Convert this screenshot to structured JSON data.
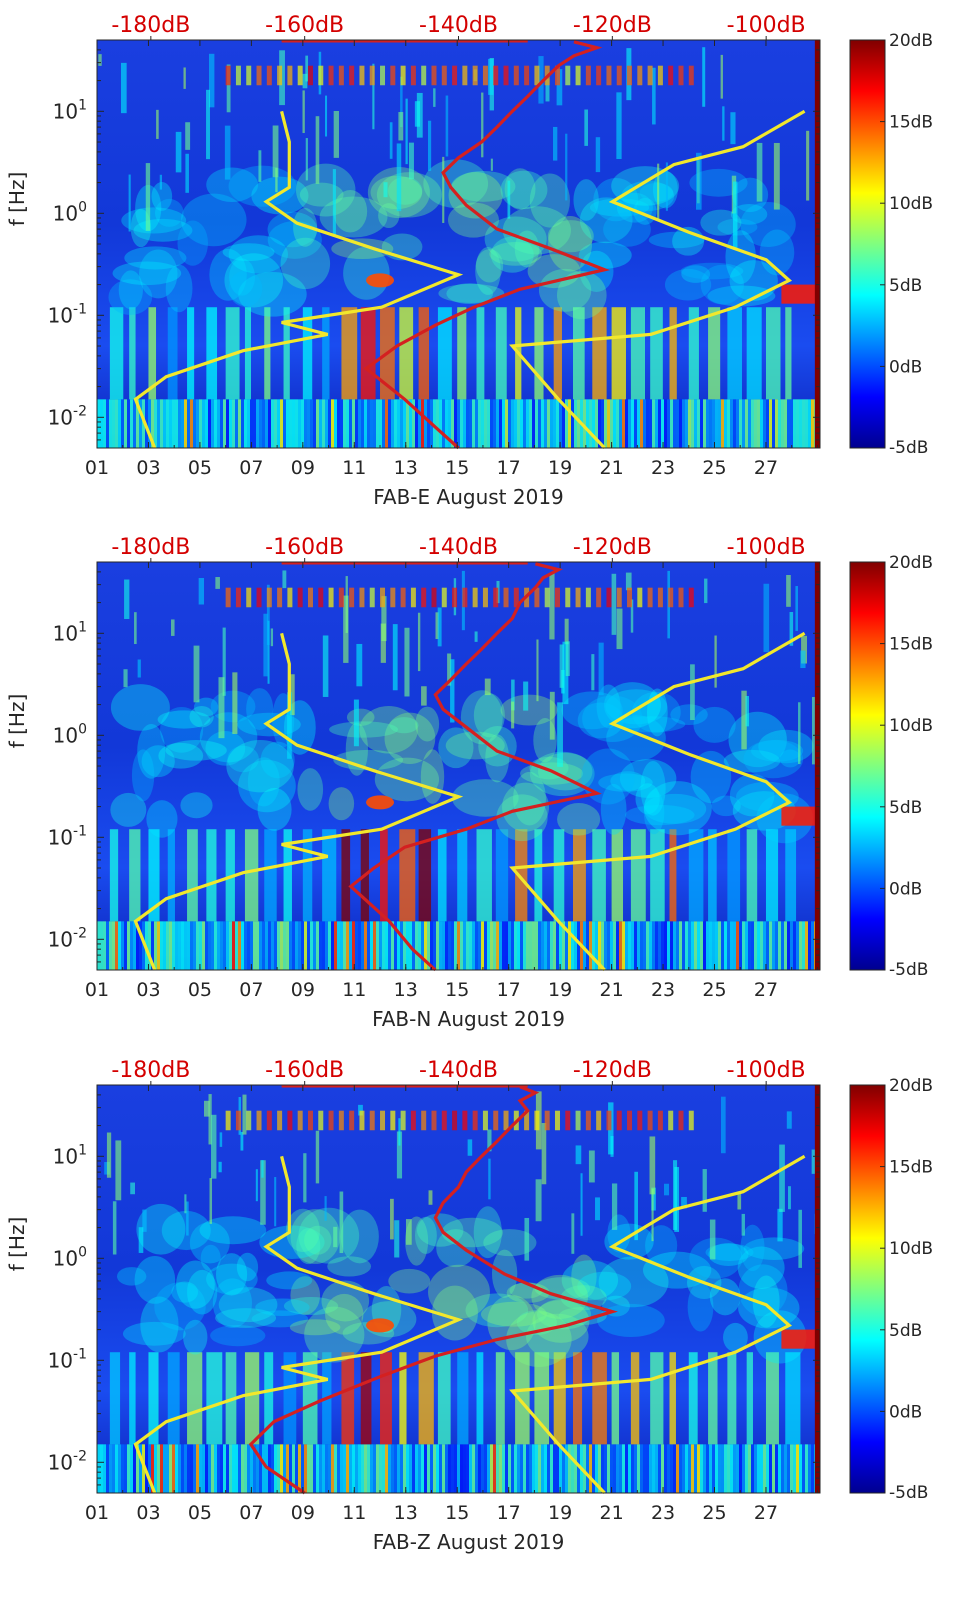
{
  "chart_data": {
    "type": "heatmap",
    "description_of_overlays": "spectrogram with noise-model curves (yellow) and station PSD curve (red)",
    "panels": [
      {
        "name": "FAB-E",
        "xlabel": "FAB-E August 2019",
        "ylabel": "f [Hz]",
        "x_ticks": [
          "01",
          "03",
          "05",
          "07",
          "09",
          "11",
          "13",
          "15",
          "17",
          "19",
          "21",
          "23",
          "25",
          "27"
        ],
        "y_ticks": [
          "10^-2",
          "10^-1",
          "10^0",
          "10^1"
        ],
        "y_range_hz": [
          0.005,
          50
        ],
        "top_axis_labels": [
          "-180dB",
          "-160dB",
          "-140dB",
          "-120dB",
          "-100dB"
        ],
        "top_axis_values_db": [
          -180,
          -160,
          -140,
          -120,
          -100
        ],
        "colorbar_labels": [
          "20dB",
          "15dB",
          "10dB",
          "5dB",
          "0dB",
          "-5dB"
        ],
        "colorbar_range_db": [
          -5,
          20
        ],
        "red_curve": {
          "name": "station PSD",
          "color": "#d42020",
          "points": [
            [
              -140,
              0.005
            ],
            [
              -143,
              0.008
            ],
            [
              -147,
              0.015
            ],
            [
              -152,
              0.03
            ],
            [
              -148,
              0.05
            ],
            [
              -143,
              0.08
            ],
            [
              -138,
              0.12
            ],
            [
              -132,
              0.18
            ],
            [
              -121,
              0.28
            ],
            [
              -128,
              0.45
            ],
            [
              -135,
              0.7
            ],
            [
              -139,
              1.2
            ],
            [
              -141,
              1.8
            ],
            [
              -142,
              2.5
            ],
            [
              -140,
              3.5
            ],
            [
              -137,
              5
            ],
            [
              -135,
              7
            ],
            [
              -133,
              10
            ],
            [
              -131,
              14
            ],
            [
              -129,
              20
            ],
            [
              -127,
              28
            ],
            [
              -125,
              35
            ],
            [
              -122,
              42
            ],
            [
              -125,
              48
            ]
          ]
        },
        "yellow_curves": [
          {
            "name": "low noise model",
            "color": "#f2e82c",
            "points": [
              [
                -179.5,
                0.005
              ],
              [
                -182,
                0.015
              ],
              [
                -178,
                0.025
              ],
              [
                -168,
                0.045
              ],
              [
                -157,
                0.065
              ],
              [
                -163,
                0.085
              ],
              [
                -150,
                0.12
              ],
              [
                -140,
                0.25
              ],
              [
                -151,
                0.45
              ],
              [
                -161,
                0.8
              ],
              [
                -165,
                1.3
              ],
              [
                -162,
                1.8
              ],
              [
                -162,
                3
              ],
              [
                -162,
                5
              ],
              [
                -163,
                10
              ]
            ]
          },
          {
            "name": "high noise model",
            "color": "#f2e82c",
            "points": [
              [
                -121,
                0.005
              ],
              [
                -127,
                0.015
              ],
              [
                -133,
                0.05
              ],
              [
                -115,
                0.065
              ],
              [
                -104,
                0.12
              ],
              [
                -97,
                0.22
              ],
              [
                -100,
                0.35
              ],
              [
                -110,
                0.65
              ],
              [
                -120,
                1.3
              ],
              [
                -112,
                3
              ],
              [
                -103,
                4.5
              ],
              [
                -95,
                10
              ]
            ]
          }
        ]
      },
      {
        "name": "FAB-N",
        "xlabel": "FAB-N August 2019",
        "ylabel": "f [Hz]",
        "x_ticks": [
          "01",
          "03",
          "05",
          "07",
          "09",
          "11",
          "13",
          "15",
          "17",
          "19",
          "21",
          "23",
          "25",
          "27"
        ],
        "y_ticks": [
          "10^-2",
          "10^-1",
          "10^0",
          "10^1"
        ],
        "y_range_hz": [
          0.005,
          50
        ],
        "top_axis_labels": [
          "-180dB",
          "-160dB",
          "-140dB",
          "-120dB",
          "-100dB"
        ],
        "top_axis_values_db": [
          -180,
          -160,
          -140,
          -120,
          -100
        ],
        "colorbar_labels": [
          "20dB",
          "15dB",
          "10dB",
          "5dB",
          "0dB",
          "-5dB"
        ],
        "colorbar_range_db": [
          -5,
          20
        ],
        "red_curve": {
          "name": "station PSD",
          "color": "#d42020",
          "points": [
            [
              -143,
              0.005
            ],
            [
              -146,
              0.008
            ],
            [
              -149,
              0.015
            ],
            [
              -154,
              0.033
            ],
            [
              -151,
              0.05
            ],
            [
              -147,
              0.08
            ],
            [
              -139,
              0.12
            ],
            [
              -133,
              0.18
            ],
            [
              -122,
              0.27
            ],
            [
              -128,
              0.45
            ],
            [
              -135,
              0.7
            ],
            [
              -139,
              1.2
            ],
            [
              -142,
              1.8
            ],
            [
              -143,
              2.5
            ],
            [
              -141,
              3.5
            ],
            [
              -139,
              5
            ],
            [
              -137,
              7
            ],
            [
              -135,
              10
            ],
            [
              -133,
              14
            ],
            [
              -132,
              20
            ],
            [
              -130,
              28
            ],
            [
              -129,
              35
            ],
            [
              -127,
              42
            ],
            [
              -130,
              48
            ]
          ]
        },
        "yellow_curves": [
          {
            "name": "low noise model",
            "color": "#f2e82c",
            "points": [
              [
                -179.5,
                0.005
              ],
              [
                -182,
                0.015
              ],
              [
                -178,
                0.025
              ],
              [
                -168,
                0.045
              ],
              [
                -157,
                0.065
              ],
              [
                -163,
                0.085
              ],
              [
                -150,
                0.12
              ],
              [
                -140,
                0.25
              ],
              [
                -151,
                0.45
              ],
              [
                -161,
                0.8
              ],
              [
                -165,
                1.3
              ],
              [
                -162,
                1.8
              ],
              [
                -162,
                3
              ],
              [
                -162,
                5
              ],
              [
                -163,
                10
              ]
            ]
          },
          {
            "name": "high noise model",
            "color": "#f2e82c",
            "points": [
              [
                -121,
                0.005
              ],
              [
                -127,
                0.015
              ],
              [
                -133,
                0.05
              ],
              [
                -115,
                0.065
              ],
              [
                -104,
                0.12
              ],
              [
                -97,
                0.22
              ],
              [
                -100,
                0.35
              ],
              [
                -110,
                0.65
              ],
              [
                -120,
                1.3
              ],
              [
                -112,
                3
              ],
              [
                -103,
                4.5
              ],
              [
                -95,
                10
              ]
            ]
          }
        ]
      },
      {
        "name": "FAB-Z",
        "xlabel": "FAB-Z August 2019",
        "ylabel": "f [Hz]",
        "x_ticks": [
          "01",
          "03",
          "05",
          "07",
          "09",
          "11",
          "13",
          "15",
          "17",
          "19",
          "21",
          "23",
          "25",
          "27"
        ],
        "y_ticks": [
          "10^-2",
          "10^-1",
          "10^0",
          "10^1"
        ],
        "y_range_hz": [
          0.005,
          50
        ],
        "top_axis_labels": [
          "-180dB",
          "-160dB",
          "-140dB",
          "-120dB",
          "-100dB"
        ],
        "top_axis_values_db": [
          -180,
          -160,
          -140,
          -120,
          -100
        ],
        "colorbar_labels": [
          "20dB",
          "15dB",
          "10dB",
          "5dB",
          "0dB",
          "-5dB"
        ],
        "colorbar_range_db": [
          -5,
          20
        ],
        "red_curve": {
          "name": "station PSD",
          "color": "#d42020",
          "points": [
            [
              -160,
              0.005
            ],
            [
              -165,
              0.009
            ],
            [
              -167,
              0.015
            ],
            [
              -164,
              0.025
            ],
            [
              -158,
              0.04
            ],
            [
              -150,
              0.07
            ],
            [
              -143,
              0.11
            ],
            [
              -135,
              0.16
            ],
            [
              -126,
              0.22
            ],
            [
              -120,
              0.3
            ],
            [
              -128,
              0.45
            ],
            [
              -134,
              0.7
            ],
            [
              -139,
              1.2
            ],
            [
              -142,
              1.8
            ],
            [
              -143,
              2.5
            ],
            [
              -142,
              3.5
            ],
            [
              -140,
              5
            ],
            [
              -139,
              7
            ],
            [
              -137,
              10
            ],
            [
              -135,
              14
            ],
            [
              -133,
              20
            ],
            [
              -131,
              28
            ],
            [
              -132,
              35
            ],
            [
              -130,
              42
            ],
            [
              -132,
              48
            ]
          ]
        },
        "yellow_curves": [
          {
            "name": "low noise model",
            "color": "#f2e82c",
            "points": [
              [
                -179.5,
                0.005
              ],
              [
                -182,
                0.015
              ],
              [
                -178,
                0.025
              ],
              [
                -168,
                0.045
              ],
              [
                -157,
                0.065
              ],
              [
                -163,
                0.085
              ],
              [
                -150,
                0.12
              ],
              [
                -140,
                0.25
              ],
              [
                -151,
                0.45
              ],
              [
                -161,
                0.8
              ],
              [
                -165,
                1.3
              ],
              [
                -162,
                1.8
              ],
              [
                -162,
                3
              ],
              [
                -162,
                5
              ],
              [
                -163,
                10
              ]
            ]
          },
          {
            "name": "high noise model",
            "color": "#f2e82c",
            "points": [
              [
                -121,
                0.005
              ],
              [
                -127,
                0.015
              ],
              [
                -133,
                0.05
              ],
              [
                -115,
                0.065
              ],
              [
                -104,
                0.12
              ],
              [
                -97,
                0.22
              ],
              [
                -100,
                0.35
              ],
              [
                -110,
                0.65
              ],
              [
                -120,
                1.3
              ],
              [
                -112,
                3
              ],
              [
                -103,
                4.5
              ],
              [
                -95,
                10
              ]
            ]
          }
        ]
      }
    ]
  }
}
